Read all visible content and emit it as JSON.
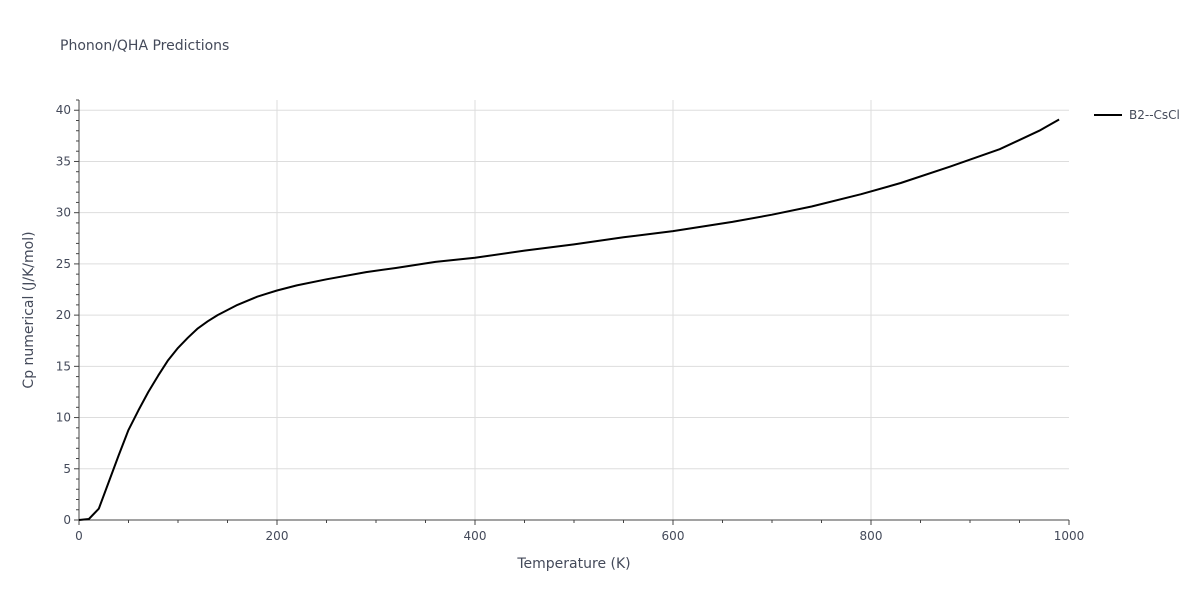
{
  "chart_data": {
    "type": "line",
    "title": "Phonon/QHA Predictions",
    "xlabel": "Temperature (K)",
    "ylabel": "Cp numerical (J/K/mol)",
    "xlim": [
      0,
      1000
    ],
    "ylim": [
      0,
      41
    ],
    "xticks": [
      0,
      200,
      400,
      600,
      800,
      1000
    ],
    "yticks": [
      0,
      5,
      10,
      15,
      20,
      25,
      30,
      35,
      40
    ],
    "grid": true,
    "legend_position": "top-right",
    "series": [
      {
        "name": "B2--CsCl",
        "color": "#000000",
        "x": [
          0,
          10,
          20,
          30,
          40,
          50,
          60,
          70,
          80,
          90,
          100,
          110,
          120,
          130,
          140,
          150,
          160,
          170,
          180,
          190,
          200,
          220,
          250,
          290,
          320,
          360,
          400,
          450,
          500,
          550,
          600,
          660,
          700,
          740,
          790,
          830,
          880,
          930,
          970,
          990
        ],
        "y": [
          0,
          0.1,
          1.1,
          3.7,
          6.3,
          8.8,
          10.7,
          12.5,
          14.1,
          15.6,
          16.8,
          17.8,
          18.7,
          19.4,
          20.0,
          20.5,
          21.0,
          21.4,
          21.8,
          22.1,
          22.4,
          22.9,
          23.5,
          24.2,
          24.6,
          25.2,
          25.6,
          26.3,
          26.9,
          27.6,
          28.2,
          29.1,
          29.8,
          30.6,
          31.8,
          32.9,
          34.5,
          36.2,
          38.0,
          39.1
        ]
      }
    ]
  },
  "colors": {
    "axis_text": "#444a5a",
    "grid": "#dddddd",
    "line": "#000000"
  }
}
